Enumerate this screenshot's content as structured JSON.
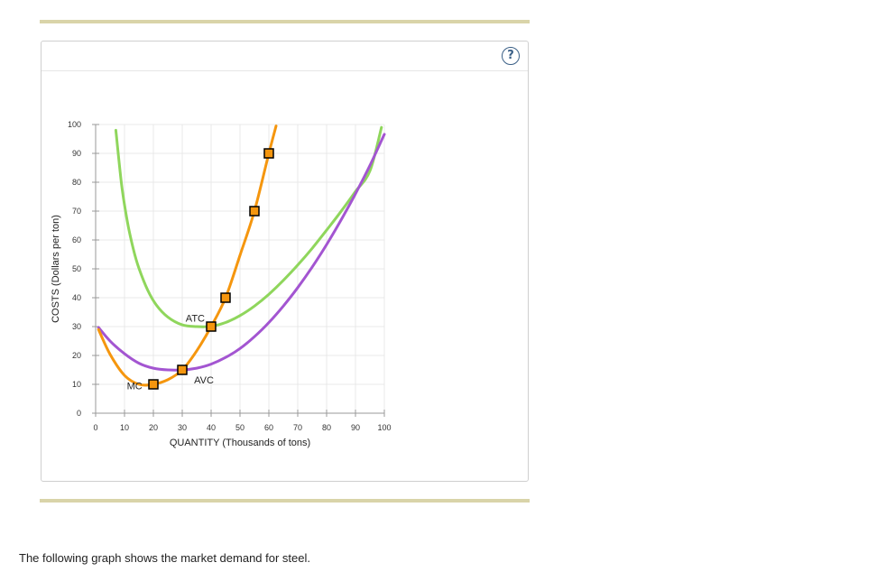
{
  "help": {
    "symbol": "?"
  },
  "caption": "The following graph shows the market demand for steel.",
  "chart_data": {
    "type": "line",
    "title": "",
    "xlabel": "QUANTITY (Thousands of tons)",
    "ylabel": "COSTS (Dollars per ton)",
    "xlim": [
      0,
      100
    ],
    "ylim": [
      0,
      100
    ],
    "x_ticks": [
      "0",
      "10",
      "20",
      "30",
      "40",
      "50",
      "60",
      "70",
      "80",
      "90",
      "100"
    ],
    "y_ticks": [
      "0",
      "10",
      "20",
      "30",
      "40",
      "50",
      "60",
      "70",
      "80",
      "90",
      "100"
    ],
    "grid": true,
    "series": [
      {
        "name": "ATC",
        "color": "#8fd65c",
        "x": [
          7,
          9,
          11,
          13,
          15,
          18,
          21,
          25,
          30,
          35,
          40,
          45,
          50,
          55,
          60,
          65,
          70,
          75,
          80,
          85,
          90,
          95,
          99
        ],
        "y": [
          98,
          79.1,
          66.3,
          57.1,
          50.2,
          42.7,
          37.5,
          33.3,
          30.6,
          30,
          30.1,
          31.4,
          33.8,
          37.1,
          41.2,
          46.0,
          51.3,
          57.1,
          63.4,
          69.9,
          76.8,
          83.9,
          99
        ]
      },
      {
        "name": "AVC",
        "color": "#a355d1",
        "x": [
          1,
          5,
          10,
          15,
          20,
          25,
          30,
          35,
          40,
          45,
          50,
          55,
          60,
          65,
          70,
          75,
          80,
          85,
          90,
          95,
          100
        ],
        "y": [
          29.7,
          25.0,
          20.6,
          17.3,
          15.6,
          15.0,
          15.0,
          15.6,
          17.0,
          19.3,
          22.4,
          26.5,
          31.4,
          37.1,
          43.5,
          50.6,
          58.4,
          66.9,
          76.0,
          85.8,
          96.6
        ]
      },
      {
        "name": "MC",
        "color": "#f5960e",
        "x": [
          1,
          5,
          10,
          15,
          20,
          25,
          30,
          35,
          40,
          45,
          50,
          55,
          60,
          62.5
        ],
        "y": [
          29.0,
          20.4,
          13.1,
          10.0,
          10.0,
          11.6,
          15.0,
          21.6,
          30.0,
          40.0,
          54.7,
          70.0,
          90.0,
          99.5
        ]
      }
    ],
    "markers": {
      "series": "MC",
      "color": "#f5960e",
      "x": [
        20,
        30,
        40,
        45,
        55,
        60
      ],
      "y": [
        10,
        15,
        30,
        40,
        70,
        90
      ]
    },
    "curve_labels": [
      {
        "text": "ATC",
        "x": 34.5,
        "y": 33
      },
      {
        "text": "AVC",
        "x": 37.5,
        "y": 11.5
      },
      {
        "text": "MC",
        "x": 13.5,
        "y": 9.5
      }
    ]
  }
}
